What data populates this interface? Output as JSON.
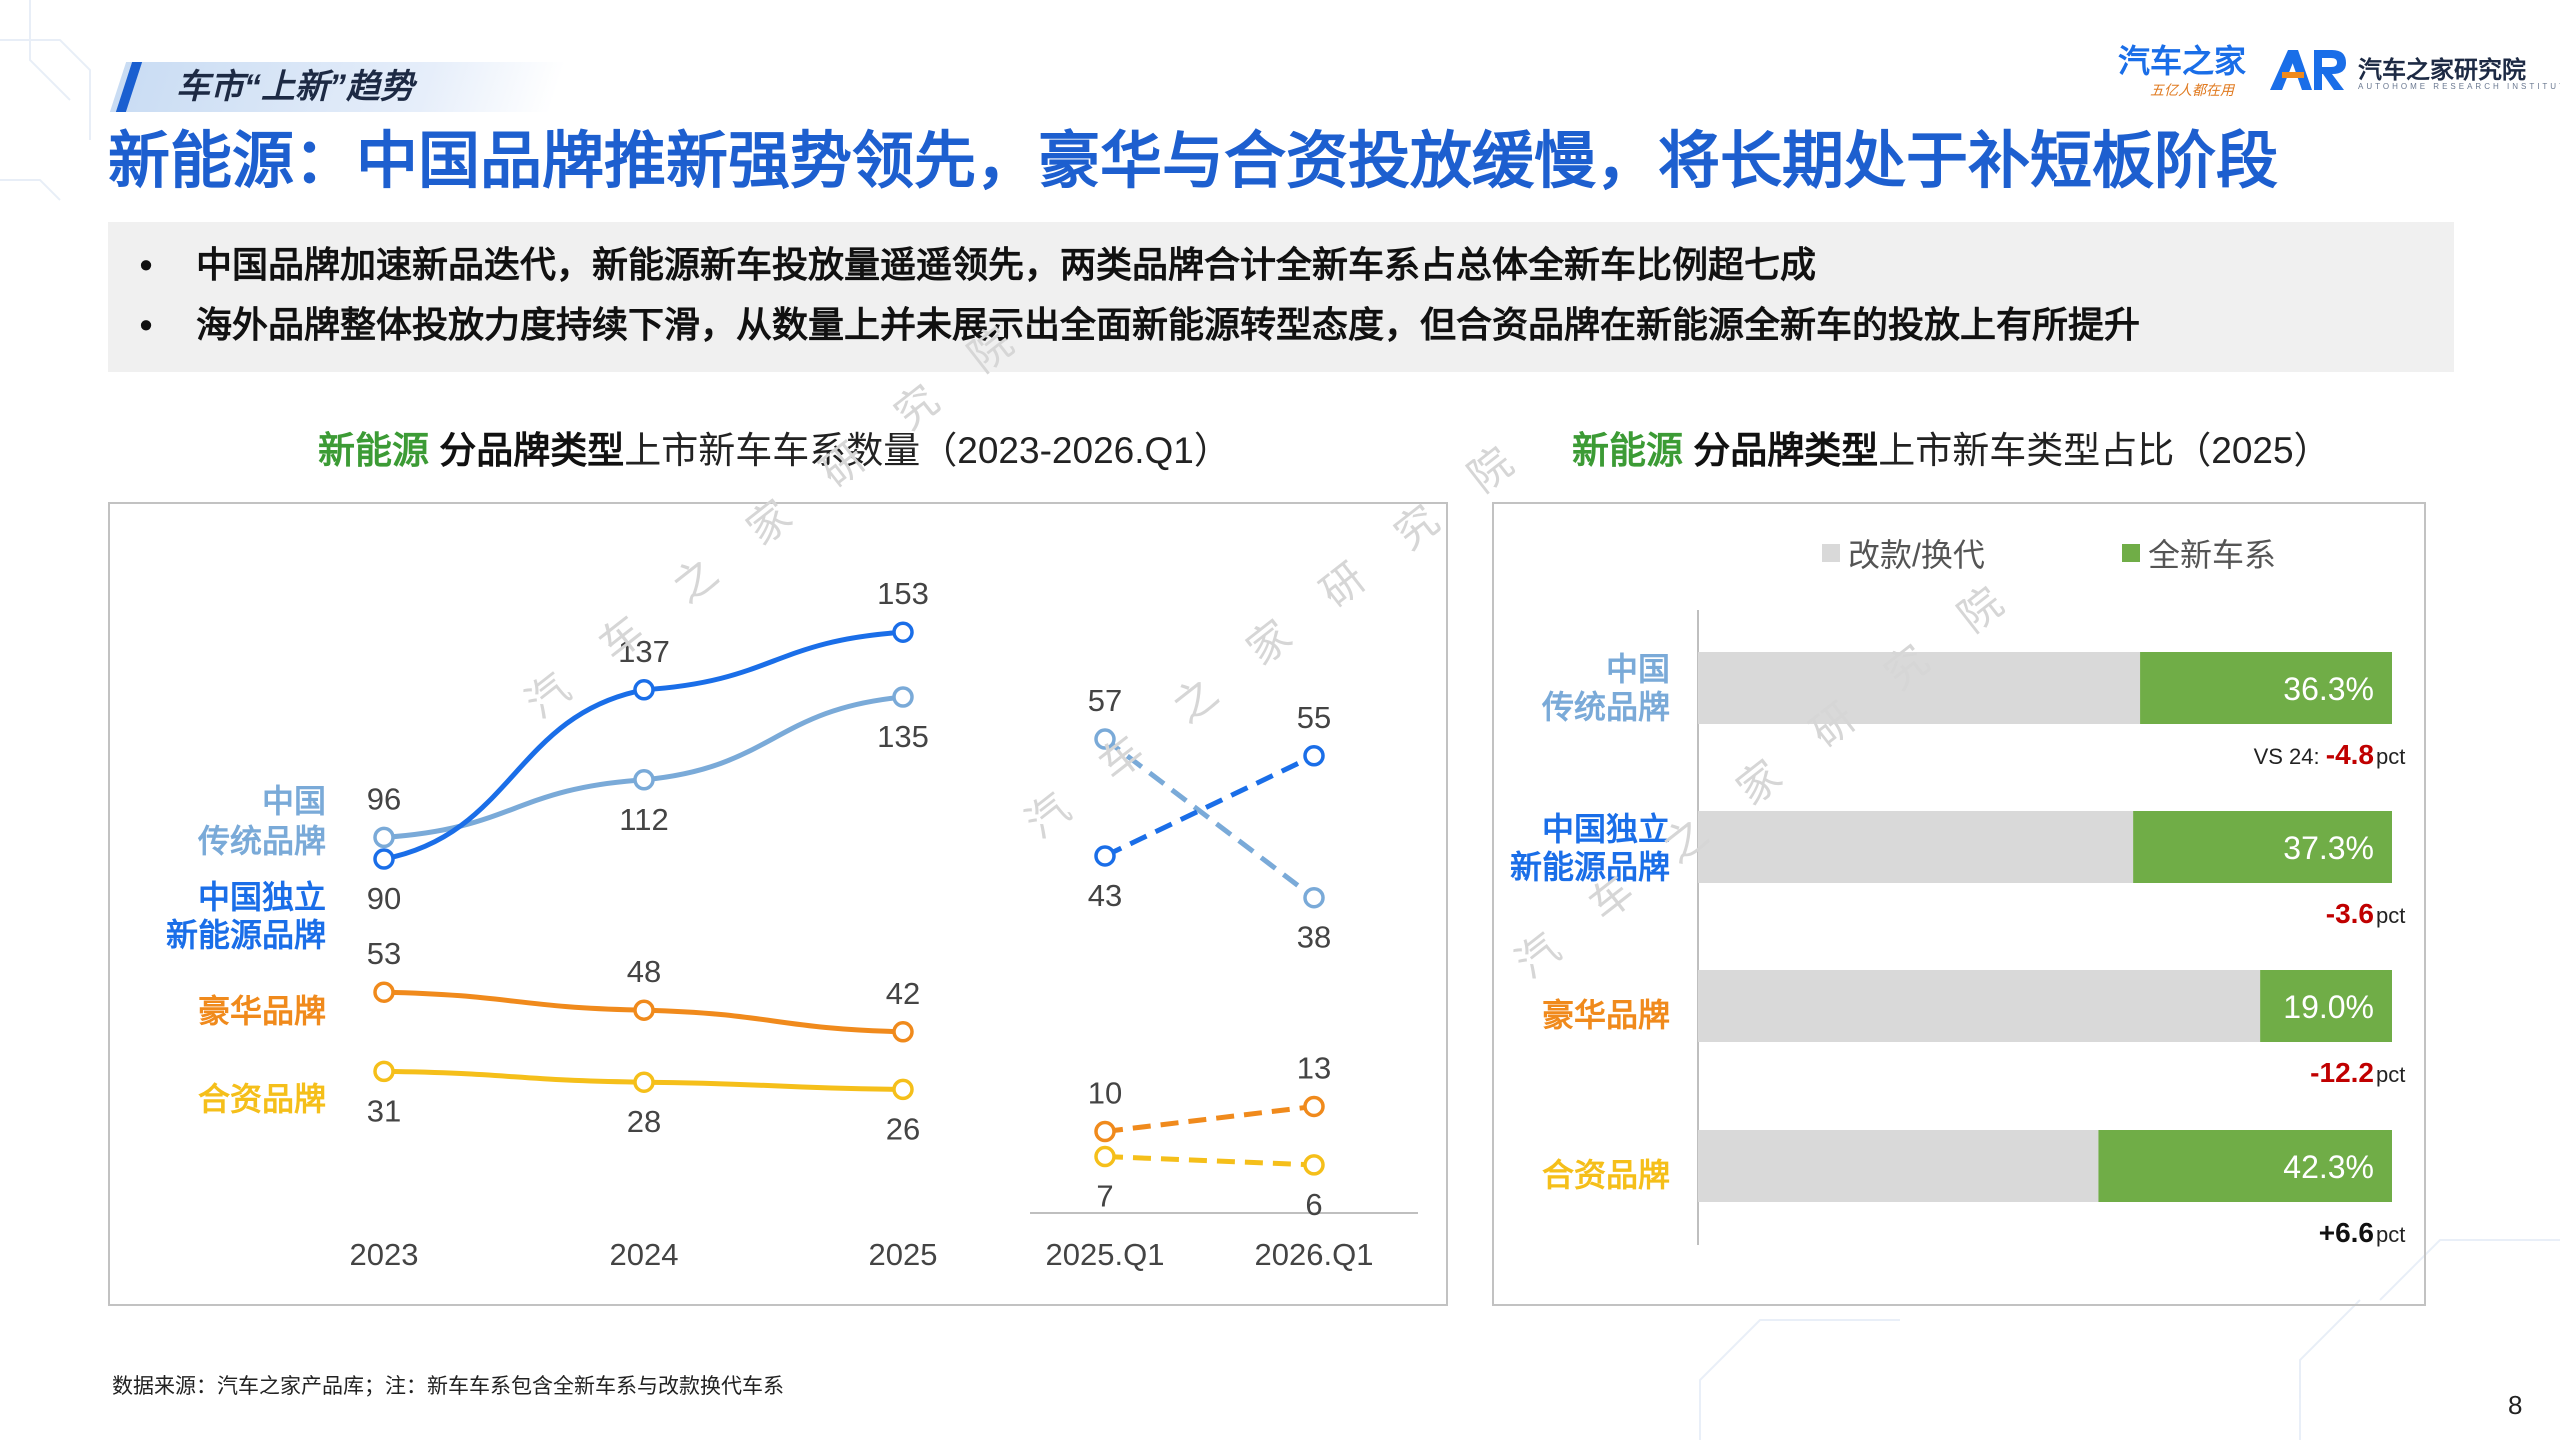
{
  "header": {
    "section_tag": "车市“上新”趋势",
    "logo_cn": "汽车之家",
    "logo_slogan": "五亿人都在用",
    "logo_institute": "汽车之家研究院",
    "logo_institute_en": "AUTOHOME RESEARCH INSTITUTE"
  },
  "main_title": "新能源：中国品牌推新强势领先，豪华与合资投放缓慢，将长期处于补短板阶段",
  "bullets": [
    {
      "marker": "•",
      "text": "中国品牌加速新品迭代，新能源新车投放量遥遥领先，两类品牌合计全新车系占总体全新车比例超七成"
    },
    {
      "marker": "•",
      "text": "海外品牌整体投放力度持续下滑，从数量上并未展示出全面新能源转型态度，但合资品牌在新能源全新车的投放上有所提升"
    }
  ],
  "left_chart_title": {
    "highlight": "新能源",
    "bold": "分品牌类型",
    "rest": "上市新车车系数量（2023-2026.Q1）"
  },
  "right_chart_title": {
    "highlight": "新能源",
    "bold": "分品牌类型",
    "rest": "上市新车类型占比（2025）"
  },
  "watermark": "汽 车 之 家 研 究 院",
  "footer": {
    "source": "数据来源：汽车之家产品库；注：新车车系包含全新车系与改款换代车系",
    "page": "8"
  },
  "colors": {
    "title_blue": "#1d5fcf",
    "cn_traditional": "#7aaad8",
    "cn_nev": "#1a6ee8",
    "luxury": "#f08a1c",
    "jv": "#f5bf1a",
    "new_series": "#70ad47",
    "facelift": "#d9d9d9",
    "highlight_green": "#3c9b35",
    "delta_red": "#c00000"
  },
  "chart_data": [
    {
      "type": "line",
      "x": [
        "2023",
        "2024",
        "2025",
        "2025.Q1",
        "2026.Q1"
      ],
      "series": [
        {
          "name": "中国传统品牌",
          "label_lines": [
            "中国",
            "传统品牌"
          ],
          "color": "#7aaad8",
          "annual": [
            96,
            112,
            135
          ],
          "quarterly": [
            57,
            38
          ]
        },
        {
          "name": "中国独立新能源品牌",
          "label_lines": [
            "中国独立",
            "新能源品牌"
          ],
          "color": "#1a6ee8",
          "annual": [
            90,
            137,
            153
          ],
          "quarterly": [
            43,
            55
          ]
        },
        {
          "name": "豪华品牌",
          "label_lines": [
            "豪华品牌"
          ],
          "color": "#f08a1c",
          "annual": [
            53,
            48,
            42
          ],
          "quarterly": [
            10,
            13
          ]
        },
        {
          "name": "合资品牌",
          "label_lines": [
            "合资品牌"
          ],
          "color": "#f5bf1a",
          "annual": [
            31,
            28,
            26
          ],
          "quarterly": [
            7,
            6
          ]
        }
      ],
      "annual_ylim": [
        0,
        175
      ],
      "quarterly_ylim": [
        0,
        80
      ],
      "quarterly_style": "dashed",
      "grid": false,
      "legend": "left"
    },
    {
      "type": "bar",
      "orientation": "horizontal",
      "stacked": true,
      "percent": true,
      "legend": [
        "改款/换代",
        "全新车系"
      ],
      "legend_position": "top",
      "categories": [
        {
          "lines": [
            "中国",
            "传统品牌"
          ],
          "color": "#7aaad8"
        },
        {
          "lines": [
            "中国独立",
            "新能源品牌"
          ],
          "color": "#1a6ee8"
        },
        {
          "lines": [
            "豪华品牌"
          ],
          "color": "#f08a1c"
        },
        {
          "lines": [
            "合资品牌"
          ],
          "color": "#f5bf1a"
        }
      ],
      "new_series_share": [
        36.3,
        37.3,
        19.0,
        42.3
      ],
      "value_labels": [
        "36.3%",
        "37.3%",
        "19.0%",
        "42.3%"
      ],
      "compare_prefix": "VS 24:",
      "delta": [
        "-4.8",
        "-3.6",
        "-12.2",
        "+6.6"
      ],
      "delta_unit": "pct"
    }
  ]
}
